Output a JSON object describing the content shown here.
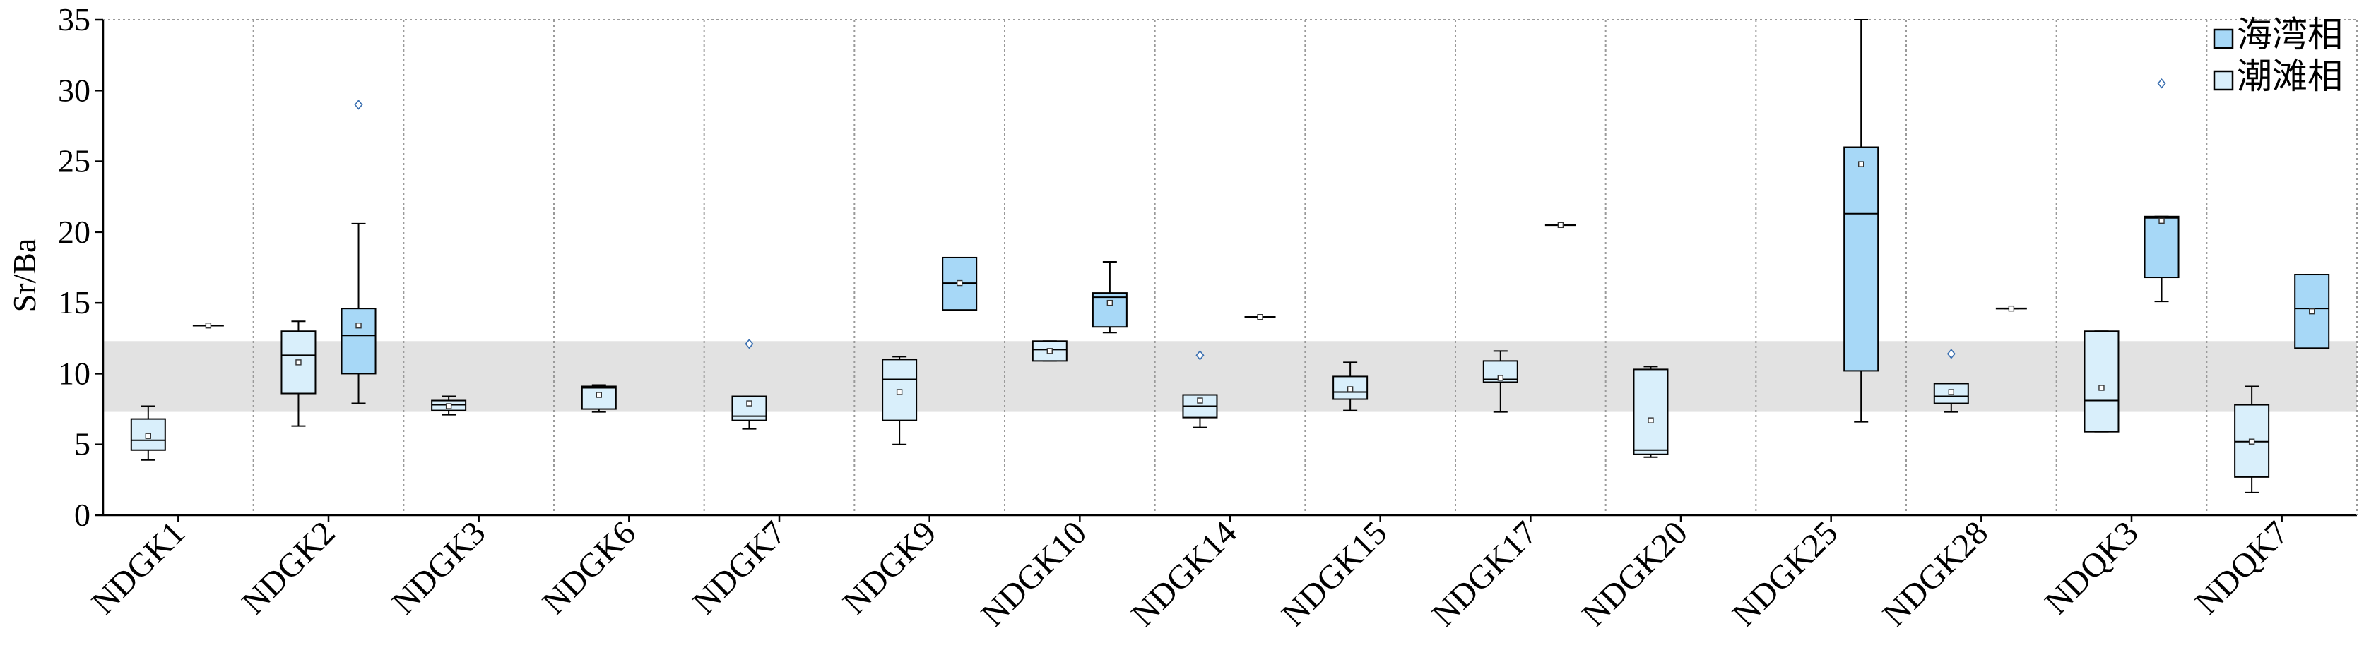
{
  "chart_data": {
    "type": "box",
    "xlabel": "",
    "ylabel": "Sr/Ba",
    "ylim": [
      0,
      35
    ],
    "yticks": [
      0,
      5,
      10,
      15,
      20,
      25,
      30,
      35
    ],
    "grid": "vertical dotted separators between categories",
    "legend_position": "top-right",
    "shaded_band": [
      7.3,
      12.3
    ],
    "colors": {
      "bay": "#a7d8f7",
      "tidal": "#d9effb",
      "band": "#e2e2e2",
      "outline": "#000000",
      "outlier": "#3a6fb0"
    },
    "categories": [
      "NDGK1",
      "NDGK2",
      "NDGK3",
      "NDGK6",
      "NDGK7",
      "NDGK9",
      "NDGK10",
      "NDGK14",
      "NDGK15",
      "NDGK17",
      "NDGK20",
      "NDGK25",
      "NDGK28",
      "NDQK3",
      "NDQK7"
    ],
    "series": [
      {
        "name": "海湾相",
        "color": "#a7d8f7",
        "boxes": [
          {
            "category": "NDGK1",
            "min": 13.4,
            "q1": 13.4,
            "median": 13.4,
            "q3": 13.4,
            "max": 13.4,
            "mean": 13.4,
            "outliers": []
          },
          {
            "category": "NDGK2",
            "min": 7.9,
            "q1": 10.0,
            "median": 12.7,
            "q3": 14.6,
            "max": 20.6,
            "mean": 13.4,
            "outliers": [
              29.0
            ]
          },
          null,
          null,
          null,
          {
            "category": "NDGK9",
            "min": 14.5,
            "q1": 14.5,
            "median": 16.4,
            "q3": 18.2,
            "max": 18.2,
            "mean": 16.4,
            "outliers": []
          },
          {
            "category": "NDGK10",
            "min": 12.9,
            "q1": 13.3,
            "median": 15.4,
            "q3": 15.7,
            "max": 17.9,
            "mean": 15.0,
            "outliers": []
          },
          {
            "category": "NDGK14",
            "min": 14.0,
            "q1": 14.0,
            "median": 14.0,
            "q3": 14.0,
            "max": 14.0,
            "mean": 14.0,
            "outliers": []
          },
          null,
          {
            "category": "NDGK17",
            "min": 20.5,
            "q1": 20.5,
            "median": 20.5,
            "q3": 20.5,
            "max": 20.5,
            "mean": 20.5,
            "outliers": []
          },
          null,
          {
            "category": "NDGK25",
            "min": 6.6,
            "q1": 10.2,
            "median": 21.3,
            "q3": 26.0,
            "max": 35.0,
            "mean": 24.8,
            "outliers": []
          },
          {
            "category": "NDGK28",
            "min": 14.6,
            "q1": 14.6,
            "median": 14.6,
            "q3": 14.6,
            "max": 14.6,
            "mean": 14.6,
            "outliers": []
          },
          {
            "category": "NDQK3",
            "min": 15.1,
            "q1": 16.8,
            "median": 21.0,
            "q3": 21.1,
            "max": 21.1,
            "mean": 20.8,
            "outliers": [
              30.5
            ]
          },
          {
            "category": "NDQK7",
            "min": 11.8,
            "q1": 11.8,
            "median": 14.6,
            "q3": 17.0,
            "max": 17.0,
            "mean": 14.4,
            "outliers": []
          }
        ]
      },
      {
        "name": "潮滩相",
        "color": "#d9effb",
        "boxes": [
          {
            "category": "NDGK1",
            "min": 3.9,
            "q1": 4.6,
            "median": 5.3,
            "q3": 6.8,
            "max": 7.7,
            "mean": 5.6,
            "outliers": []
          },
          {
            "category": "NDGK2",
            "min": 6.3,
            "q1": 8.6,
            "median": 11.3,
            "q3": 13.0,
            "max": 13.7,
            "mean": 10.8,
            "outliers": []
          },
          {
            "category": "NDGK3",
            "min": 7.1,
            "q1": 7.4,
            "median": 7.8,
            "q3": 8.1,
            "max": 8.4,
            "mean": 7.7,
            "outliers": []
          },
          {
            "category": "NDGK6",
            "min": 7.3,
            "q1": 7.5,
            "median": 9.0,
            "q3": 9.1,
            "max": 9.2,
            "mean": 8.5,
            "outliers": []
          },
          {
            "category": "NDGK7",
            "min": 6.1,
            "q1": 6.7,
            "median": 7.0,
            "q3": 8.4,
            "max": 8.4,
            "mean": 7.9,
            "outliers": [
              12.1
            ]
          },
          {
            "category": "NDGK9",
            "min": 5.0,
            "q1": 6.7,
            "median": 9.6,
            "q3": 11.0,
            "max": 11.2,
            "mean": 8.7,
            "outliers": []
          },
          {
            "category": "NDGK10",
            "min": 10.9,
            "q1": 10.9,
            "median": 11.7,
            "q3": 12.3,
            "max": 12.3,
            "mean": 11.6,
            "outliers": []
          },
          {
            "category": "NDGK14",
            "min": 6.2,
            "q1": 6.9,
            "median": 7.7,
            "q3": 8.5,
            "max": 8.5,
            "mean": 8.1,
            "outliers": [
              11.3
            ]
          },
          {
            "category": "NDGK15",
            "min": 7.4,
            "q1": 8.2,
            "median": 8.7,
            "q3": 9.8,
            "max": 10.8,
            "mean": 8.9,
            "outliers": []
          },
          {
            "category": "NDGK17",
            "min": 7.3,
            "q1": 9.4,
            "median": 9.6,
            "q3": 10.9,
            "max": 11.6,
            "mean": 9.7,
            "outliers": []
          },
          {
            "category": "NDGK20",
            "min": 4.1,
            "q1": 4.3,
            "median": 4.6,
            "q3": 10.3,
            "max": 10.5,
            "mean": 6.7,
            "outliers": []
          },
          null,
          {
            "category": "NDGK28",
            "min": 7.3,
            "q1": 7.9,
            "median": 8.4,
            "q3": 9.3,
            "max": 9.3,
            "mean": 8.7,
            "outliers": [
              11.4
            ]
          },
          {
            "category": "NDQK3",
            "min": 5.9,
            "q1": 5.9,
            "median": 8.1,
            "q3": 13.0,
            "max": 13.0,
            "mean": 9.0,
            "outliers": []
          },
          {
            "category": "NDQK7",
            "min": 1.6,
            "q1": 2.7,
            "median": 5.2,
            "q3": 7.8,
            "max": 9.1,
            "mean": 5.2,
            "outliers": []
          }
        ]
      }
    ]
  }
}
